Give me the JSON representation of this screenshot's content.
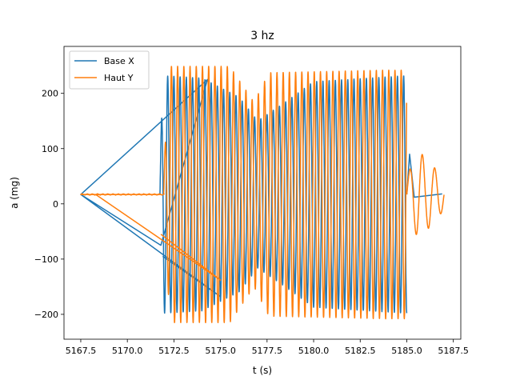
{
  "chart_data": {
    "type": "line",
    "title": "3 hz",
    "xlabel": "t (s)",
    "ylabel": "a (mg)",
    "xlim": [
      5166.6,
      5187.9
    ],
    "ylim": [
      -245,
      285
    ],
    "xticks": [
      5167.5,
      5170.0,
      5172.5,
      5175.0,
      5177.5,
      5180.0,
      5182.5,
      5185.0,
      5187.5
    ],
    "xtick_labels": [
      "5167.5",
      "5170.0",
      "5172.5",
      "5175.0",
      "5177.5",
      "5180.0",
      "5182.5",
      "5185.0",
      "5187.5"
    ],
    "yticks": [
      -200,
      -100,
      0,
      100,
      200
    ],
    "ytick_labels": [
      "−200",
      "−100",
      "0",
      "100",
      "200"
    ],
    "grid": false,
    "legend_position": "upper-left",
    "series": [
      {
        "name": "Base X",
        "color": "#1f77b4",
        "segments": [
          {
            "kind": "points",
            "x": [
              5167.5,
              5174.3,
              5171.8,
              5167.5,
              5175.0,
              5171.9
            ],
            "y": [
              17,
              225,
              -75,
              17,
              -168,
              -95
            ]
          },
          {
            "kind": "oscillation",
            "t0": 5171.75,
            "t1": 5185.0,
            "freq": 3.0,
            "amp": 215,
            "offset": 17,
            "env": [
              [
                5171.75,
                0.35
              ],
              [
                5171.95,
                1.0
              ],
              [
                5174.0,
                0.98
              ],
              [
                5176.0,
                0.82
              ],
              [
                5177.0,
                0.62
              ],
              [
                5178.5,
                0.78
              ],
              [
                5180.0,
                0.95
              ],
              [
                5185.0,
                1.0
              ]
            ]
          },
          {
            "kind": "points",
            "x": [
              5185.0,
              5185.15,
              5185.4,
              5186.9
            ],
            "y": [
              17,
              90,
              12,
              18
            ]
          }
        ]
      },
      {
        "name": "Haut Y",
        "color": "#ff7f0e",
        "segments": [
          {
            "kind": "points",
            "x": [
              5167.5,
              5171.8,
              5167.5,
              5168.3,
              5175.0,
              5171.8
            ],
            "y": [
              17,
              17,
              17,
              17,
              -138,
              -55
            ]
          },
          {
            "kind": "flat",
            "t0": 5167.5,
            "t1": 5172.0,
            "offset": 17
          },
          {
            "kind": "oscillation",
            "t0": 5171.95,
            "t1": 5185.0,
            "freq": 3.0,
            "amp": 232,
            "offset": 17,
            "env": [
              [
                5171.95,
                0.2
              ],
              [
                5172.3,
                1.0
              ],
              [
                5175.5,
                1.0
              ],
              [
                5176.8,
                0.72
              ],
              [
                5177.6,
                0.95
              ],
              [
                5183.8,
                0.97
              ],
              [
                5185.0,
                0.97
              ]
            ]
          },
          {
            "kind": "oscillation",
            "t0": 5185.0,
            "t1": 5187.0,
            "freq": 1.5,
            "amp": 80,
            "offset": 17,
            "env": [
              [
                5185.0,
                0.4
              ],
              [
                5185.6,
                1.0
              ],
              [
                5186.2,
                0.75
              ],
              [
                5187.0,
                0.35
              ]
            ]
          }
        ]
      }
    ]
  }
}
